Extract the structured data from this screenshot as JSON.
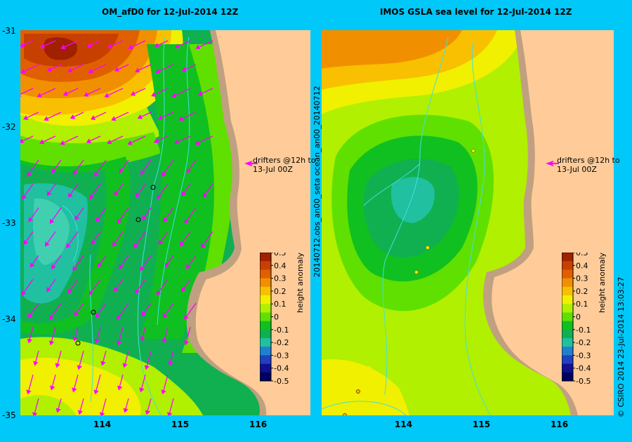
{
  "left_panel": {
    "title": "OM_afD0 for 12-Jul-2014 12Z",
    "drifter_note": "drifters @12h to\n13-Jul 00Z"
  },
  "right_panel": {
    "title": "IMOS GSLA sea level  for 12-Jul-2014 12Z",
    "drifter_note": "drifters @12h to\n13-Jul 00Z",
    "side_label": "20140712.obs_an00_seta          ocean_an00_20140712"
  },
  "lat_ticks": [
    "-31",
    "-32",
    "-33",
    "-34",
    "-35"
  ],
  "lon_ticks": [
    "114",
    "115",
    "116"
  ],
  "colorbar": {
    "label": "height anomaly (m)",
    "ticks": [
      "0.5",
      "0.4",
      "0.3",
      "0.2",
      "0.1",
      "0",
      "-0.1",
      "-0.2",
      "-0.3",
      "-0.4",
      "-0.5"
    ],
    "colors": [
      "#a02000",
      "#c84000",
      "#e06000",
      "#f09000",
      "#f8c000",
      "#f0f000",
      "#b0f000",
      "#60e000",
      "#10c020",
      "#10b050",
      "#20c0a0",
      "#2080d0",
      "#2040c0",
      "#101090",
      "#000060"
    ]
  },
  "footer": "© CSIRO 2014   23-Jul-2014 13:03:27",
  "colors": {
    "background": "#00c8f8",
    "land": "#ffcc99",
    "coast": "#c0a080",
    "vectors": "#ff00ff"
  }
}
